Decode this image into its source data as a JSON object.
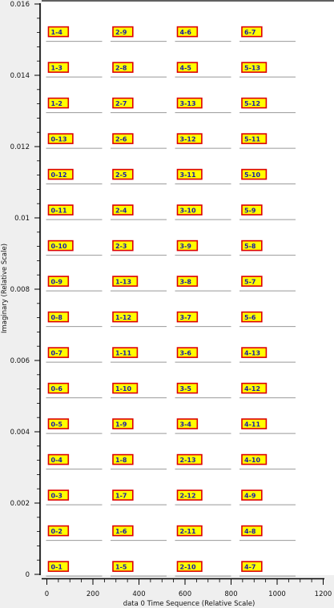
{
  "chart_data": {
    "type": "scatter",
    "xlabel": "data 0 Time Sequence (Relative Scale)",
    "ylabel": "Imaginary (Relative Scale)",
    "xlim": [
      -10,
      1200
    ],
    "ylim": [
      0,
      0.016
    ],
    "xticks": [
      "0",
      "200",
      "400",
      "600",
      "800",
      "1000",
      "1200"
    ],
    "yticks": [
      "0",
      "0.002",
      "0.004",
      "0.006",
      "0.008",
      "0.01",
      "0.012",
      "0.014",
      "0.016"
    ],
    "grid": false,
    "legend": "none",
    "colors": {
      "box_fill": "#ffff00",
      "box_border": "#dd0000",
      "label_text": "#1a1aa6",
      "underline": "#999999",
      "axis": "#000000",
      "plot_bg": "#ffffff",
      "page_bg": "#efefef"
    },
    "columns": [
      {
        "x": 0,
        "labels": [
          "0-1",
          "0-2",
          "0-3",
          "0-4",
          "0-5",
          "0-6",
          "0-7",
          "0-8",
          "0-9",
          "0-10",
          "0-11",
          "0-12",
          "0-13",
          "1-2",
          "1-3",
          "1-4"
        ]
      },
      {
        "x": 280,
        "labels": [
          "1-5",
          "1-6",
          "1-7",
          "1-8",
          "1-9",
          "1-10",
          "1-11",
          "1-12",
          "1-13",
          "2-3",
          "2-4",
          "2-5",
          "2-6",
          "2-7",
          "2-8",
          "2-9"
        ]
      },
      {
        "x": 560,
        "labels": [
          "2-10",
          "2-11",
          "2-12",
          "2-13",
          "3-4",
          "3-5",
          "3-6",
          "3-7",
          "3-8",
          "3-9",
          "3-10",
          "3-11",
          "3-12",
          "3-13",
          "4-5",
          "4-6"
        ]
      },
      {
        "x": 840,
        "labels": [
          "4-7",
          "4-8",
          "4-9",
          "4-10",
          "4-11",
          "4-12",
          "4-13",
          "5-6",
          "5-7",
          "5-8",
          "5-9",
          "5-10",
          "5-11",
          "5-12",
          "5-13",
          "6-7"
        ]
      }
    ],
    "row_y": [
      0.0002,
      0.0012,
      0.0022,
      0.0032,
      0.0042,
      0.0052,
      0.0062,
      0.0072,
      0.0082,
      0.0092,
      0.0102,
      0.0112,
      0.0122,
      0.0132,
      0.0142,
      0.0152
    ]
  }
}
